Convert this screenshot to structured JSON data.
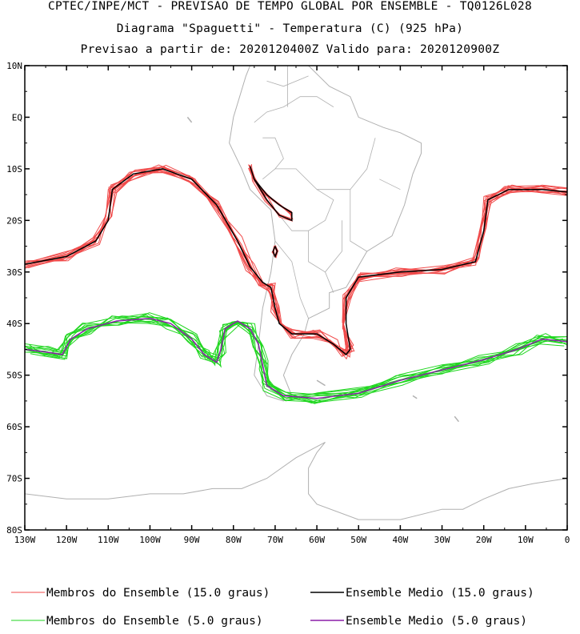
{
  "header": {
    "line1": "CPTEC/INPE/MCT - PREVISAO DE TEMPO GLOBAL POR ENSEMBLE - TQ0126L028",
    "line2": "Diagrama \"Spaguetti\" - Temperatura (C) (925 hPa)",
    "line3": "Previsao a partir de: 2020120400Z  Valido para: 2020120900Z"
  },
  "axes": {
    "lat_labels": [
      "10N",
      "EQ",
      "10S",
      "20S",
      "30S",
      "40S",
      "50S",
      "60S",
      "70S",
      "80S"
    ],
    "lat_values": [
      10,
      0,
      -10,
      -20,
      -30,
      -40,
      -50,
      -60,
      -70,
      -80
    ],
    "lon_labels": [
      "130W",
      "120W",
      "110W",
      "100W",
      "90W",
      "80W",
      "70W",
      "60W",
      "50W",
      "40W",
      "30W",
      "20W",
      "10W",
      "0"
    ],
    "lon_values": [
      -130,
      -120,
      -110,
      -100,
      -90,
      -80,
      -70,
      -60,
      -50,
      -40,
      -30,
      -20,
      -10,
      0
    ]
  },
  "colors": {
    "member15": "#f04a4a",
    "mean15": "#000000",
    "member5": "#1fd61f",
    "mean5": "#8b1fa8",
    "coast": "#b0b0b0"
  },
  "legend": [
    {
      "label": "Membros do Ensemble (15.0 graus)",
      "color": "#f04a4a"
    },
    {
      "label": "Ensemble Medio (15.0 graus)",
      "color": "#000000"
    },
    {
      "label": "Membros do Ensemble (5.0 graus)",
      "color": "#1fd61f"
    },
    {
      "label": "Ensemble Medio (5.0 graus)",
      "color": "#8b1fa8"
    }
  ],
  "contours": {
    "mean15_main": [
      [
        -130,
        -28.5
      ],
      [
        -120,
        -27
      ],
      [
        -113,
        -24
      ],
      [
        -110,
        -20
      ],
      [
        -109,
        -14
      ],
      [
        -104,
        -11
      ],
      [
        -97,
        -10
      ],
      [
        -90,
        -12
      ],
      [
        -84,
        -17
      ],
      [
        -79,
        -24
      ],
      [
        -76,
        -29
      ],
      [
        -73,
        -32
      ],
      [
        -71,
        -33
      ],
      [
        -70,
        -37
      ],
      [
        -69,
        -40
      ],
      [
        -66,
        -42
      ],
      [
        -60,
        -42
      ],
      [
        -56,
        -44
      ],
      [
        -53,
        -46
      ],
      [
        -52,
        -45
      ],
      [
        -53,
        -40
      ],
      [
        -53,
        -35
      ],
      [
        -50,
        -31
      ],
      [
        -40,
        -30
      ],
      [
        -30,
        -29.5
      ],
      [
        -22,
        -28
      ],
      [
        -20,
        -22
      ],
      [
        -19,
        -16
      ],
      [
        -14,
        -14
      ],
      [
        -6,
        -14
      ],
      [
        0,
        -14.5
      ]
    ],
    "mean15_andes": [
      [
        -76,
        -9.5
      ],
      [
        -75,
        -12
      ],
      [
        -72,
        -15
      ],
      [
        -69,
        -17
      ],
      [
        -66,
        -18.5
      ],
      [
        -66,
        -20
      ],
      [
        -69,
        -19
      ],
      [
        -72,
        -16
      ],
      [
        -75,
        -12
      ],
      [
        -76,
        -9.5
      ]
    ],
    "mean15_small": [
      [
        -70,
        -25
      ],
      [
        -69.5,
        -26
      ],
      [
        -70,
        -27
      ],
      [
        -70.5,
        -26
      ],
      [
        -70,
        -25
      ]
    ],
    "mean5": [
      [
        -130,
        -45
      ],
      [
        -125,
        -45.5
      ],
      [
        -121,
        -46
      ],
      [
        -119,
        -43
      ],
      [
        -115,
        -41
      ],
      [
        -108,
        -39.5
      ],
      [
        -100,
        -39
      ],
      [
        -95,
        -40
      ],
      [
        -90,
        -43
      ],
      [
        -87,
        -46
      ],
      [
        -84,
        -47.5
      ],
      [
        -83,
        -45
      ],
      [
        -82,
        -41
      ],
      [
        -79,
        -39.5
      ],
      [
        -76,
        -41
      ],
      [
        -74,
        -44
      ],
      [
        -73,
        -48
      ],
      [
        -72,
        -52
      ],
      [
        -68,
        -54
      ],
      [
        -60,
        -54.5
      ],
      [
        -50,
        -53.5
      ],
      [
        -40,
        -51
      ],
      [
        -30,
        -49
      ],
      [
        -20,
        -47
      ],
      [
        -12,
        -45
      ],
      [
        -6,
        -43
      ],
      [
        0,
        -43.5
      ]
    ]
  }
}
